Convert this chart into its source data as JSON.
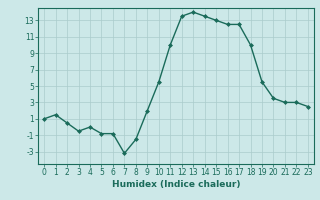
{
  "x": [
    0,
    1,
    2,
    3,
    4,
    5,
    6,
    7,
    8,
    9,
    10,
    11,
    12,
    13,
    14,
    15,
    16,
    17,
    18,
    19,
    20,
    21,
    22,
    23
  ],
  "y": [
    1,
    1.5,
    0.5,
    -0.5,
    0,
    -0.8,
    -0.8,
    -3.2,
    -1.5,
    2,
    5.5,
    10,
    13.5,
    14,
    13.5,
    13,
    12.5,
    12.5,
    10,
    5.5,
    3.5,
    3,
    3,
    2.5
  ],
  "line_color": "#1a6b5a",
  "marker": "D",
  "marker_size": 2.0,
  "bg_color": "#cce8e8",
  "grid_color": "#aacccc",
  "xlabel": "Humidex (Indice chaleur)",
  "xlim": [
    -0.5,
    23.5
  ],
  "ylim": [
    -4.5,
    14.5
  ],
  "yticks": [
    -3,
    -1,
    1,
    3,
    5,
    7,
    9,
    11,
    13
  ],
  "xticks": [
    0,
    1,
    2,
    3,
    4,
    5,
    6,
    7,
    8,
    9,
    10,
    11,
    12,
    13,
    14,
    15,
    16,
    17,
    18,
    19,
    20,
    21,
    22,
    23
  ],
  "xlabel_fontsize": 6.5,
  "tick_fontsize": 5.5,
  "linewidth": 1.0
}
